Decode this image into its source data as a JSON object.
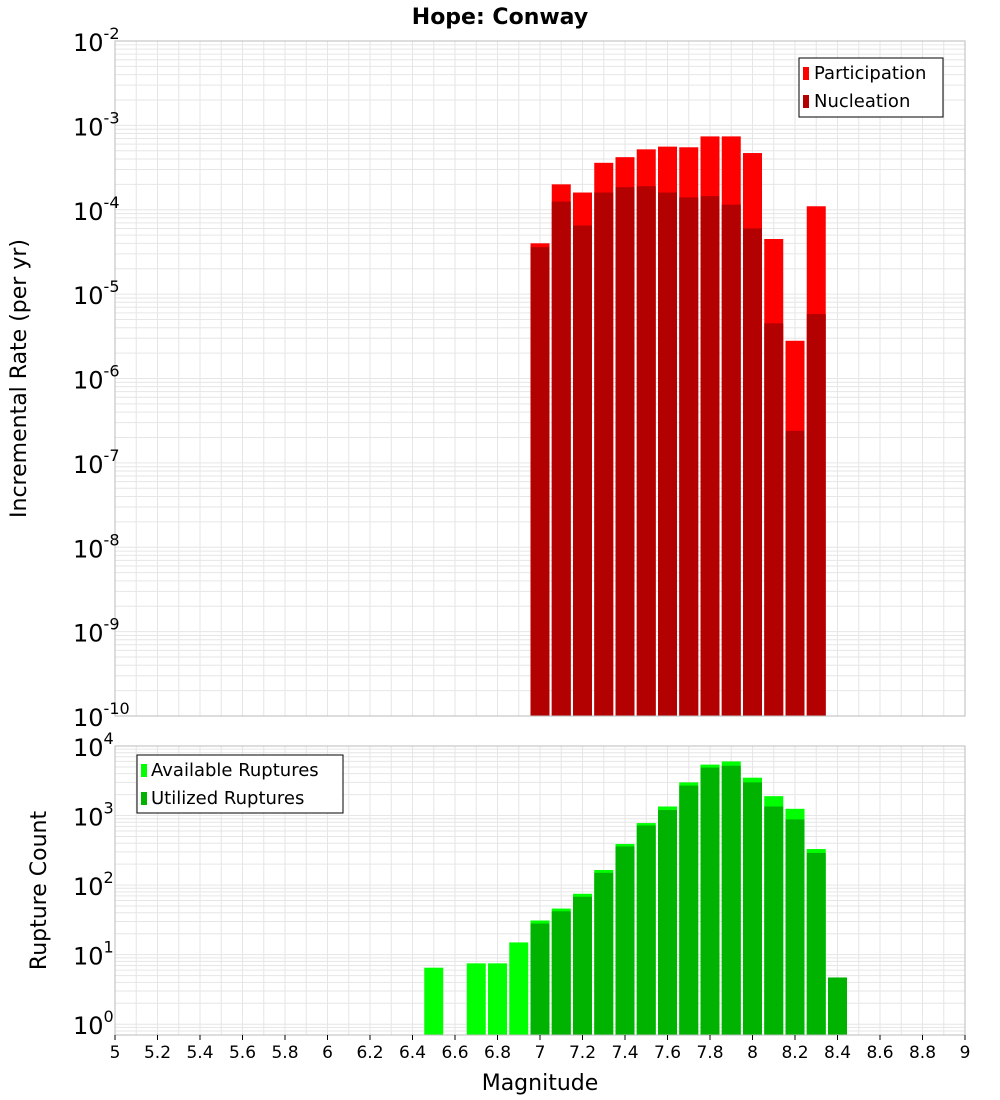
{
  "title": "Hope: Conway",
  "x_axis": {
    "label": "Magnitude",
    "ticks": [
      "5",
      "5.2",
      "5.4",
      "5.6",
      "5.8",
      "6",
      "6.2",
      "6.4",
      "6.6",
      "6.8",
      "7",
      "7.2",
      "7.4",
      "7.6",
      "7.8",
      "8",
      "8.2",
      "8.4",
      "8.6",
      "8.8",
      "9"
    ]
  },
  "colors": {
    "participation": "#ff0000",
    "nucleation": "#b30000",
    "available": "#00ff00",
    "utilized": "#00b300",
    "grid": "#e6e6e6",
    "frame": "#bbbbbb"
  },
  "chart_data": [
    {
      "type": "bar",
      "title": "Hope: Conway",
      "xlabel": "Magnitude",
      "ylabel": "Incremental Rate (per yr)",
      "xlim": [
        5,
        9
      ],
      "ylim": [
        1e-10,
        0.01
      ],
      "yscale": "log",
      "ytick_exponents": [
        "-2",
        "-3",
        "-4",
        "-5",
        "-6",
        "-7",
        "-8",
        "-9",
        "-10"
      ],
      "legend": {
        "position": "top-right",
        "entries": [
          "Participation",
          "Nucleation"
        ]
      },
      "x": [
        7.0,
        7.1,
        7.2,
        7.3,
        7.4,
        7.5,
        7.6,
        7.7,
        7.8,
        7.9,
        8.0,
        8.1,
        8.2,
        8.3
      ],
      "series": [
        {
          "name": "Participation",
          "values": [
            4e-05,
            0.0002,
            0.00016,
            0.00036,
            0.00042,
            0.00052,
            0.00056,
            0.00055,
            0.00074,
            0.00074,
            0.00047,
            4.5e-05,
            2.8e-06,
            0.00011
          ]
        },
        {
          "name": "Nucleation",
          "values": [
            3.6e-05,
            0.000125,
            6.5e-05,
            0.00016,
            0.000185,
            0.00019,
            0.00016,
            0.00014,
            0.000145,
            0.000115,
            6e-05,
            4.5e-06,
            2.4e-07,
            5.8e-06
          ]
        }
      ]
    },
    {
      "type": "bar",
      "xlabel": "Magnitude",
      "ylabel": "Rupture Count",
      "xlim": [
        5,
        9
      ],
      "ylim": [
        0.7,
        10000
      ],
      "yscale": "log",
      "ytick_exponents": [
        "4",
        "3",
        "2",
        "1",
        "0"
      ],
      "legend": {
        "position": "top-left",
        "entries": [
          "Available Ruptures",
          "Utilized Ruptures"
        ]
      },
      "x": [
        6.5,
        6.6,
        6.7,
        6.8,
        6.9,
        7.0,
        7.1,
        7.2,
        7.3,
        7.4,
        7.5,
        7.6,
        7.7,
        7.8,
        7.9,
        8.0,
        8.1,
        8.2,
        8.3,
        8.4
      ],
      "series": [
        {
          "name": "Available Ruptures",
          "values": [
            6.5,
            0,
            7.5,
            7.5,
            15,
            31,
            46,
            75,
            165,
            390,
            780,
            1350,
            3000,
            5400,
            6000,
            3500,
            1900,
            1250,
            330,
            4.7
          ]
        },
        {
          "name": "Utilized Ruptures",
          "values": [
            0,
            0,
            0,
            0,
            0,
            28,
            42,
            68,
            150,
            360,
            720,
            1200,
            2700,
            4900,
            5200,
            3000,
            1350,
            880,
            290,
            4.7
          ]
        }
      ]
    }
  ]
}
